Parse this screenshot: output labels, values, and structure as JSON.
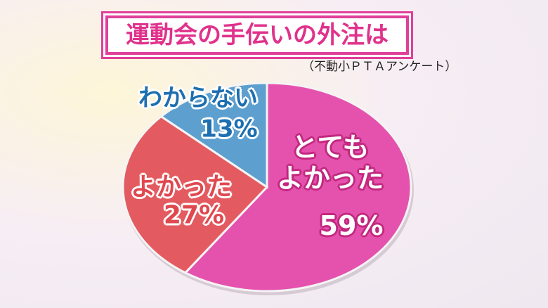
{
  "chart_data": {
    "type": "pie",
    "title": "運動会の手伝いの外注は",
    "subtitle": "（不動小ＰＴＡアンケート）",
    "categories": [
      "とても\nよかった",
      "よかった",
      "わからない"
    ],
    "values": [
      59,
      27,
      13
    ],
    "value_labels": [
      "59%",
      "27%",
      "13%"
    ],
    "colors": [
      "#e552ae",
      "#e35b60",
      "#5d9fcf"
    ]
  }
}
